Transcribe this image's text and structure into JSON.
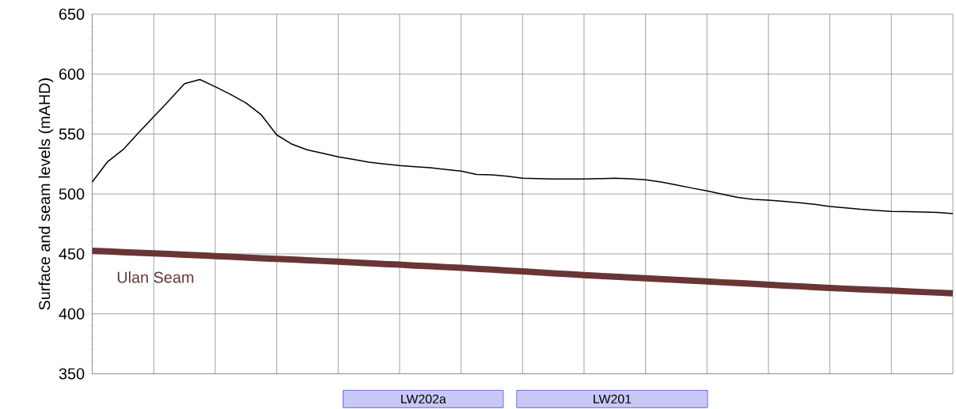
{
  "chart_data": {
    "type": "line",
    "ylabel": "Surface and seam levels (mAHD)",
    "categories": [
      null,
      null,
      null,
      null,
      null,
      null,
      null,
      null,
      null,
      null,
      null,
      null,
      null,
      null,
      null,
      null,
      null,
      null,
      null,
      null,
      null,
      null,
      null,
      null,
      null,
      null,
      null,
      null,
      null,
      null,
      null,
      null,
      null,
      null,
      null,
      null,
      null,
      null,
      null,
      null,
      null,
      null,
      null,
      null,
      null,
      null,
      null,
      null,
      null,
      null,
      null,
      null,
      null,
      null,
      null,
      null,
      null
    ],
    "ylim": [
      350,
      650
    ],
    "yticks": [
      350,
      400,
      450,
      500,
      550,
      600,
      650
    ],
    "grid": true,
    "tick_labels": "y",
    "marker": "none",
    "series": [
      {
        "color": "#000000",
        "values": [
          510,
          527,
          537,
          551,
          564.5,
          578,
          592,
          595.5,
          589.5,
          583,
          576,
          566,
          549.3,
          541.5,
          536.8,
          533.9,
          531,
          528.8,
          526.5,
          525,
          523.7,
          522.8,
          521.9,
          520.5,
          519.1,
          516.3,
          515.9,
          514.8,
          513.2,
          512.8,
          512.5,
          512.5,
          512.5,
          512.8,
          513.1,
          512.6,
          511.8,
          510,
          507.6,
          505,
          502.6,
          499.8,
          497.2,
          495.5,
          494.8,
          493.9,
          492.7,
          491.4,
          489.5,
          488.4,
          487.2,
          486.3,
          485.5,
          485.3,
          485,
          484.6,
          483.6
        ]
      },
      {
        "name": "Ulan Seam",
        "color": "#693535",
        "values": [
          452.6,
          452.1,
          451.5,
          451.0,
          450.4,
          449.9,
          449.3,
          448.8,
          448.2,
          447.6,
          447.0,
          446.4,
          445.9,
          445.3,
          444.7,
          444.1,
          443.5,
          442.9,
          442.2,
          441.6,
          441.0,
          440.3,
          439.7,
          439.0,
          438.4,
          437.6,
          436.9,
          436.1,
          435.4,
          434.6,
          433.8,
          433.1,
          432.3,
          431.6,
          431.0,
          430.3,
          429.7,
          429.0,
          428.3,
          427.7,
          427.0,
          426.3,
          425.7,
          425.0,
          424.3,
          423.6,
          423.0,
          422.3,
          421.6,
          421.0,
          420.5,
          419.9,
          419.4,
          418.8,
          418.2,
          417.7,
          417.1
        ]
      }
    ],
    "annotations": [
      "LW202a",
      "LW201"
    ]
  }
}
